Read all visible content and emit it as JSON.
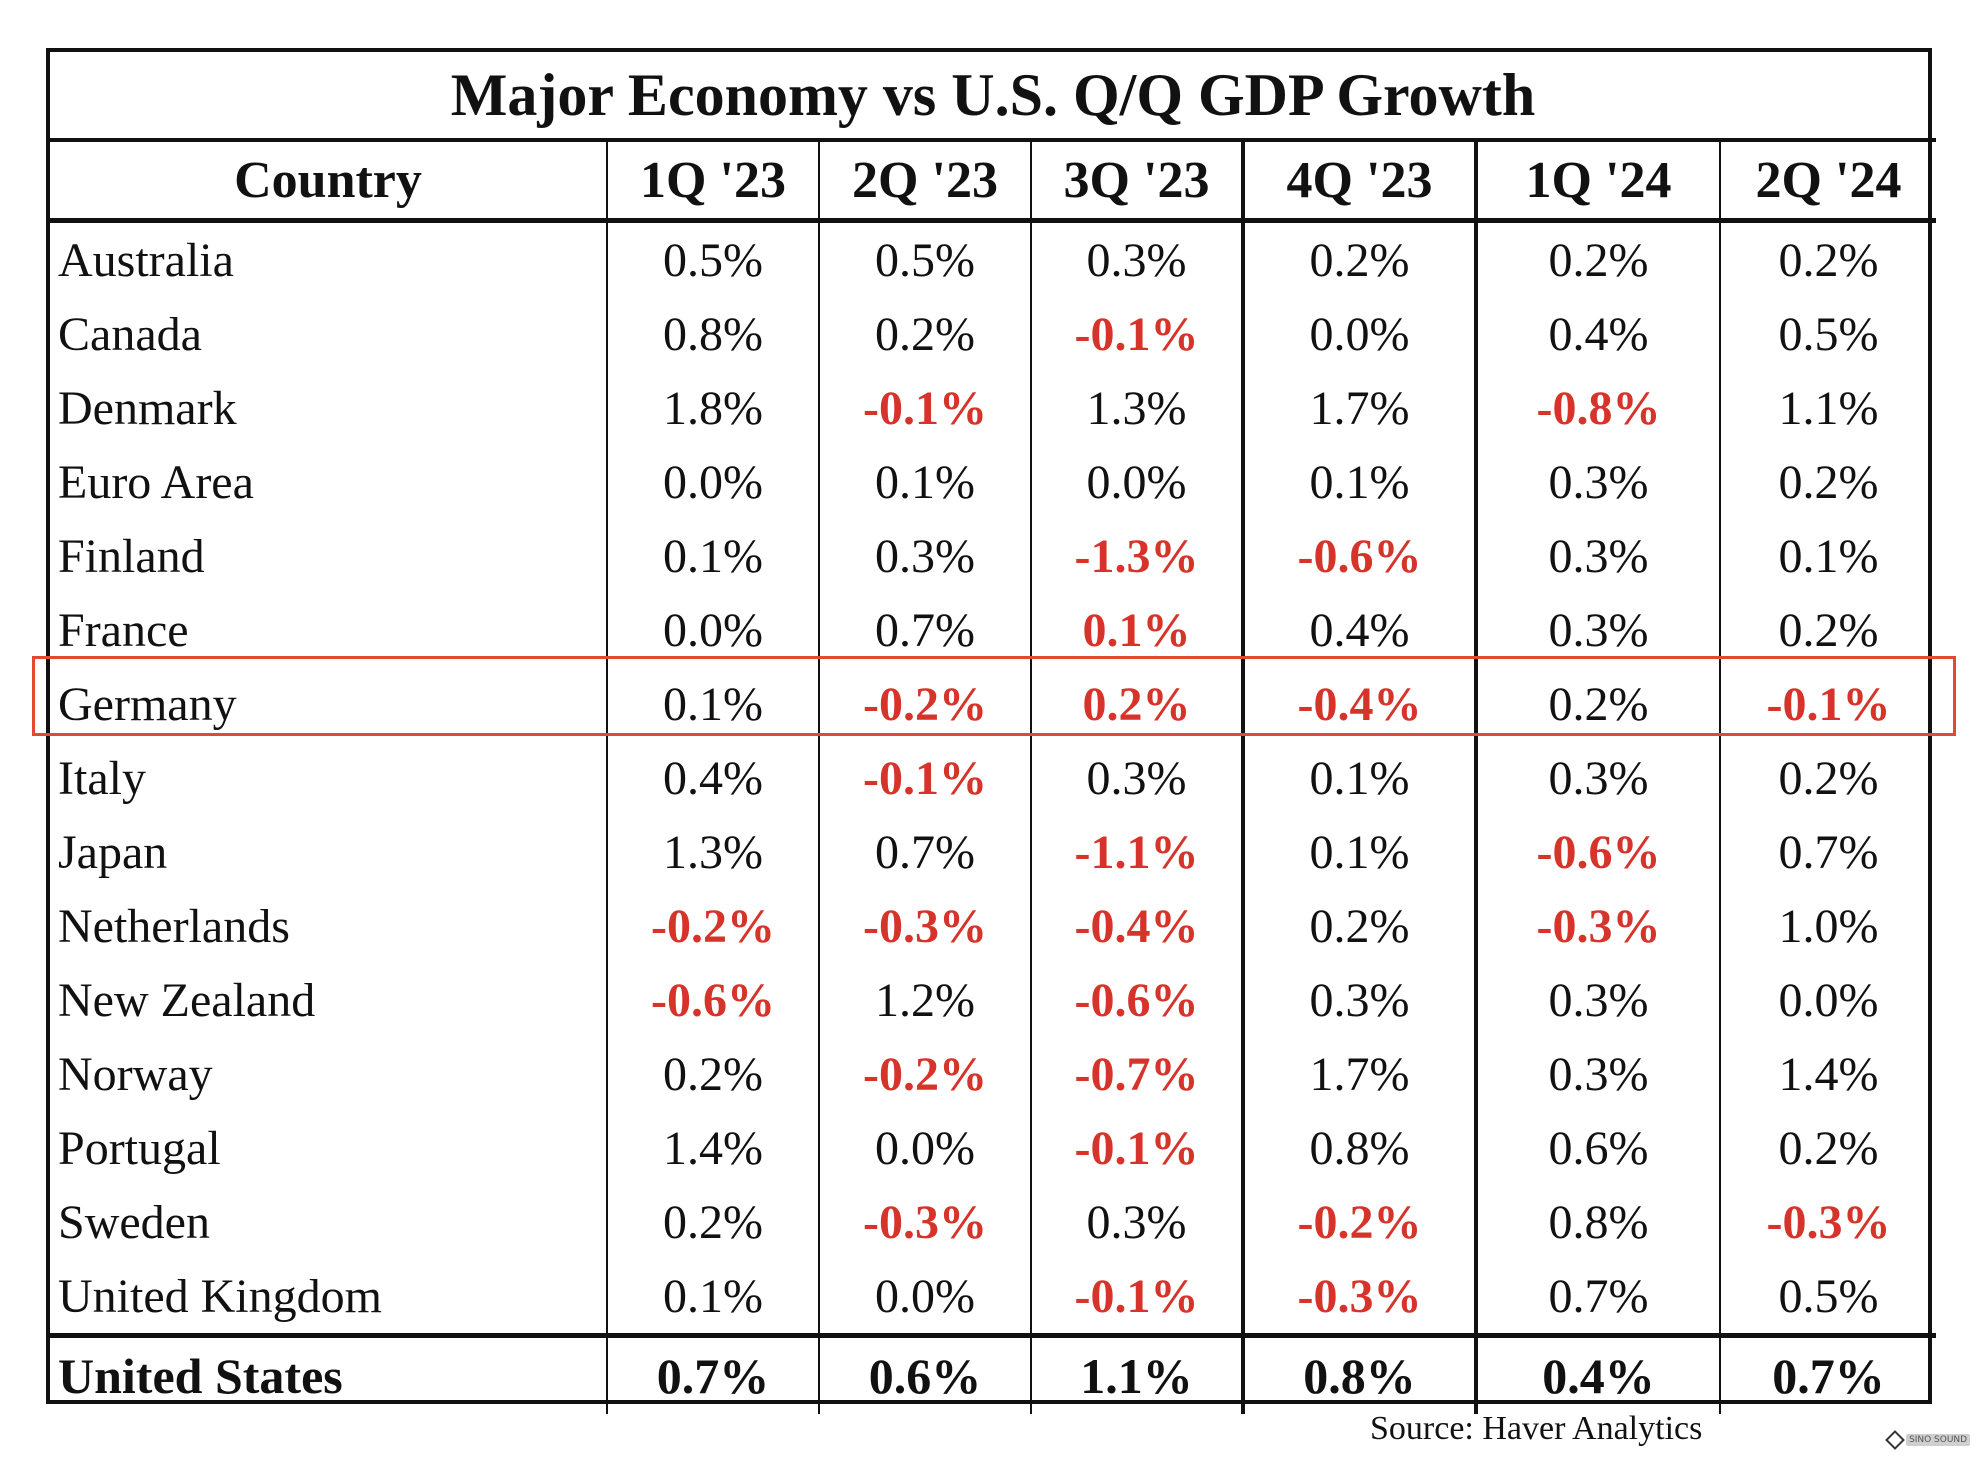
{
  "colors": {
    "text": "#111111",
    "negative": "#d6342a",
    "highlight_border": "#e04a32",
    "background": "#ffffff"
  },
  "chart_data": {
    "type": "table",
    "title": "Major Economy vs U.S. Q/Q GDP Growth",
    "columns": [
      "Country",
      "1Q '23",
      "2Q '23",
      "3Q '23",
      "4Q '23",
      "1Q '24",
      "2Q '24"
    ],
    "highlighted_row": "Germany",
    "rows": [
      {
        "country": "Australia",
        "values": [
          "0.5%",
          "0.5%",
          "0.3%",
          "0.2%",
          "0.2%",
          "0.2%"
        ]
      },
      {
        "country": "Canada",
        "values": [
          "0.8%",
          "0.2%",
          "-0.1%",
          "0.0%",
          "0.4%",
          "0.5%"
        ]
      },
      {
        "country": "Denmark",
        "values": [
          "1.8%",
          "-0.1%",
          "1.3%",
          "1.7%",
          "-0.8%",
          "1.1%"
        ]
      },
      {
        "country": "Euro Area",
        "values": [
          "0.0%",
          "0.1%",
          "0.0%",
          "0.1%",
          "0.3%",
          "0.2%"
        ]
      },
      {
        "country": "Finland",
        "values": [
          "0.1%",
          "0.3%",
          "-1.3%",
          "-0.6%",
          "0.3%",
          "0.1%"
        ]
      },
      {
        "country": "France",
        "values": [
          "0.0%",
          "0.7%",
          "0.1%",
          "0.4%",
          "0.3%",
          "0.2%"
        ],
        "red_override": [
          2
        ]
      },
      {
        "country": "Germany",
        "values": [
          "0.1%",
          "-0.2%",
          "0.2%",
          "-0.4%",
          "0.2%",
          "-0.1%"
        ],
        "red_override": [
          2
        ]
      },
      {
        "country": "Italy",
        "values": [
          "0.4%",
          "-0.1%",
          "0.3%",
          "0.1%",
          "0.3%",
          "0.2%"
        ]
      },
      {
        "country": "Japan",
        "values": [
          "1.3%",
          "0.7%",
          "-1.1%",
          "0.1%",
          "-0.6%",
          "0.7%"
        ]
      },
      {
        "country": "Netherlands",
        "values": [
          "-0.2%",
          "-0.3%",
          "-0.4%",
          "0.2%",
          "-0.3%",
          "1.0%"
        ]
      },
      {
        "country": "New Zealand",
        "values": [
          "-0.6%",
          "1.2%",
          "-0.6%",
          "0.3%",
          "0.3%",
          "0.0%"
        ]
      },
      {
        "country": "Norway",
        "values": [
          "0.2%",
          "-0.2%",
          "-0.7%",
          "1.7%",
          "0.3%",
          "1.4%"
        ]
      },
      {
        "country": "Portugal",
        "values": [
          "1.4%",
          "0.0%",
          "-0.1%",
          "0.8%",
          "0.6%",
          "0.2%"
        ]
      },
      {
        "country": "Sweden",
        "values": [
          "0.2%",
          "-0.3%",
          "0.3%",
          "-0.2%",
          "0.8%",
          "-0.3%"
        ]
      },
      {
        "country": "United Kingdom",
        "values": [
          "0.1%",
          "0.0%",
          "-0.1%",
          "-0.3%",
          "0.7%",
          "0.5%"
        ]
      }
    ],
    "total_row": {
      "country": "United States",
      "values": [
        "0.7%",
        "0.6%",
        "1.1%",
        "0.8%",
        "0.4%",
        "0.7%"
      ]
    }
  },
  "source": "Source: Haver Analytics",
  "watermark": "SINO SOUND"
}
